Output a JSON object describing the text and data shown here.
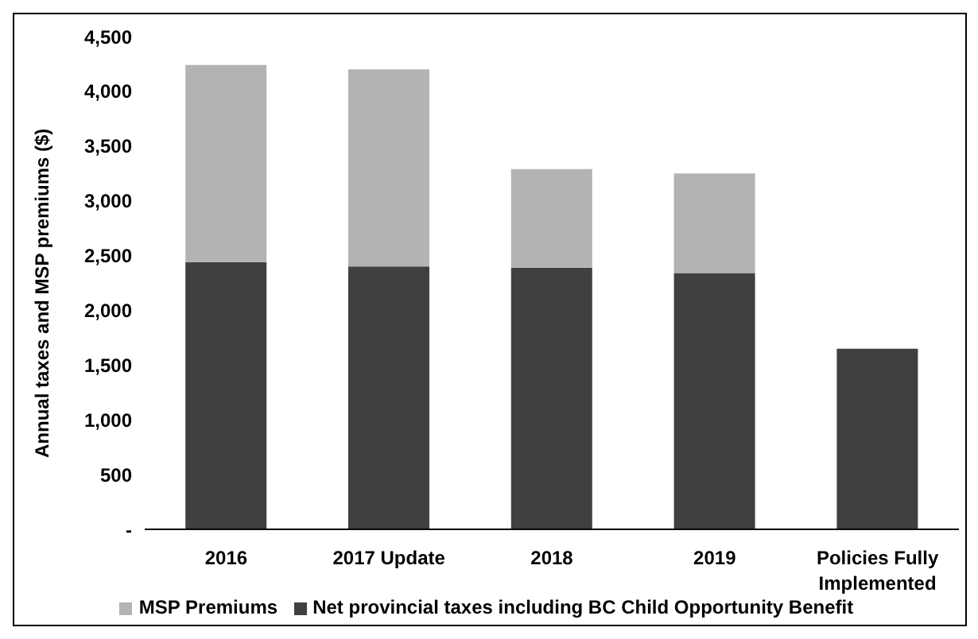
{
  "chart_data": {
    "type": "bar",
    "stacked": true,
    "ylabel": "Annual taxes and MSP premiums ($)",
    "categories": [
      "2016",
      "2017 Update",
      "2018",
      "2019",
      "Policies Fully Implemented"
    ],
    "series": [
      {
        "name": "Net provincial taxes including BC Child Opportunity Benefit",
        "color": "#404040",
        "values": [
          2440,
          2400,
          2390,
          2340,
          1650
        ]
      },
      {
        "name": "MSP Premiums",
        "color": "#b3b3b3",
        "values": [
          1800,
          1800,
          900,
          910,
          null
        ]
      }
    ],
    "ylim": [
      0,
      4500
    ],
    "yticks": [
      {
        "value": 0,
        "label": "-"
      },
      500,
      {
        "value": 1000,
        "label": "1,000"
      },
      {
        "value": 1500,
        "label": "1,500"
      },
      {
        "value": 2000,
        "label": "2,000"
      },
      {
        "value": 2500,
        "label": "2,500"
      },
      {
        "value": 3000,
        "label": "3,000"
      },
      {
        "value": 3500,
        "label": "3,500"
      },
      {
        "value": 4000,
        "label": "4,000"
      },
      {
        "value": 4500,
        "label": "4,500"
      }
    ],
    "grid": false,
    "legend": "bottom"
  }
}
